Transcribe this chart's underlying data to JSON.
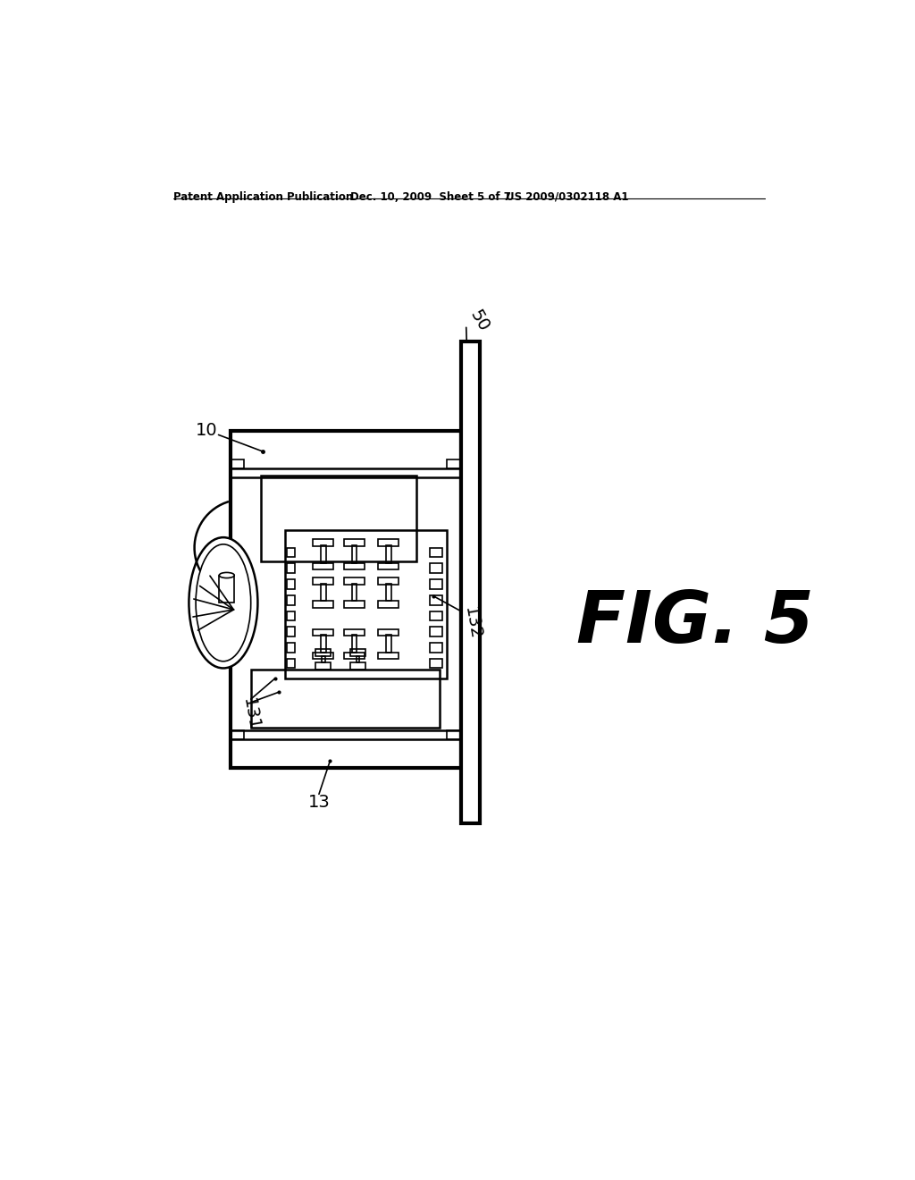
{
  "background_color": "#ffffff",
  "header_left": "Patent Application Publication",
  "header_mid": "Dec. 10, 2009  Sheet 5 of 7",
  "header_right": "US 2009/0302118 A1",
  "fig_label": "FIG. 5",
  "line_color": "#000000",
  "lw_thin": 1.2,
  "lw_med": 1.8,
  "lw_thick": 3.0
}
